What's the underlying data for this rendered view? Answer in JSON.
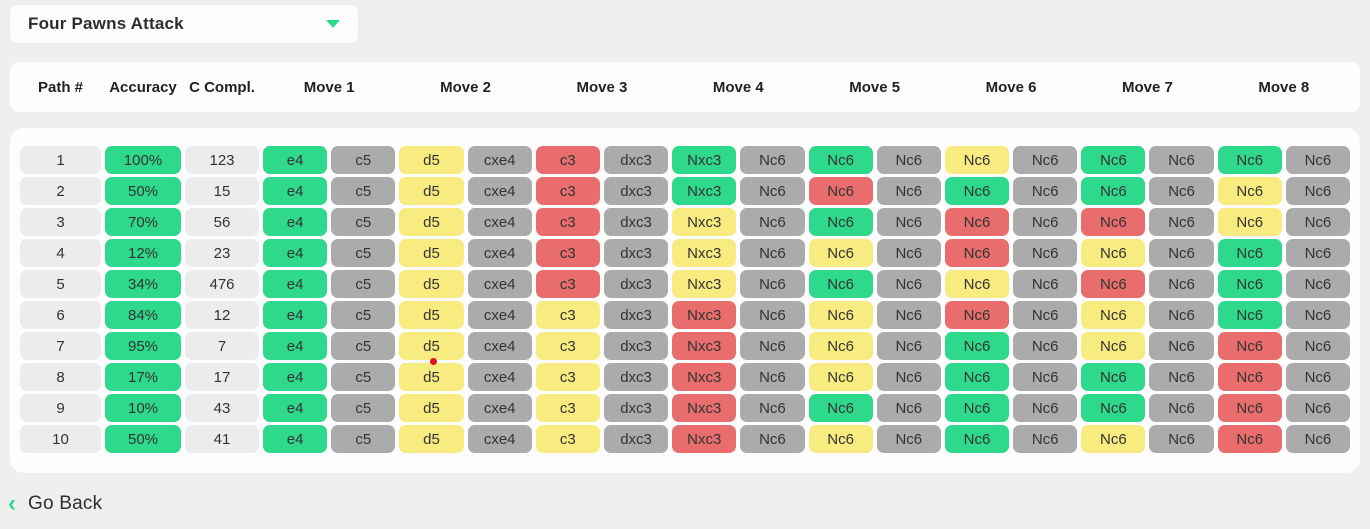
{
  "dropdown": {
    "label": "Four Pawns Attack"
  },
  "colors": {
    "green": "#2ed98b",
    "gray": "#ababab",
    "yellow": "#f8eb7f",
    "red": "#ea6d6d",
    "accent": "#2ed98b"
  },
  "table": {
    "headers": [
      "Path #",
      "Accuracy",
      "C Compl.",
      "Move 1",
      "Move 2",
      "Move 3",
      "Move 4",
      "Move 5",
      "Move 6",
      "Move 7",
      "Move 8"
    ],
    "rows": [
      {
        "path": "1",
        "accuracy": "100%",
        "completions": "123",
        "moves": [
          [
            "e4",
            "g"
          ],
          [
            "c5",
            "x"
          ],
          [
            "d5",
            "y"
          ],
          [
            "cxe4",
            "x"
          ],
          [
            "c3",
            "r"
          ],
          [
            "dxc3",
            "x"
          ],
          [
            "Nxc3",
            "g"
          ],
          [
            "Nc6",
            "x"
          ],
          [
            "Nc6",
            "g"
          ],
          [
            "Nc6",
            "x"
          ],
          [
            "Nc6",
            "y"
          ],
          [
            "Nc6",
            "x"
          ],
          [
            "Nc6",
            "g"
          ],
          [
            "Nc6",
            "x"
          ],
          [
            "Nc6",
            "g"
          ],
          [
            "Nc6",
            "x"
          ]
        ]
      },
      {
        "path": "2",
        "accuracy": "50%",
        "completions": "15",
        "moves": [
          [
            "e4",
            "g"
          ],
          [
            "c5",
            "x"
          ],
          [
            "d5",
            "y"
          ],
          [
            "cxe4",
            "x"
          ],
          [
            "c3",
            "r"
          ],
          [
            "dxc3",
            "x"
          ],
          [
            "Nxc3",
            "g"
          ],
          [
            "Nc6",
            "x"
          ],
          [
            "Nc6",
            "r"
          ],
          [
            "Nc6",
            "x"
          ],
          [
            "Nc6",
            "g"
          ],
          [
            "Nc6",
            "x"
          ],
          [
            "Nc6",
            "g"
          ],
          [
            "Nc6",
            "x"
          ],
          [
            "Nc6",
            "y"
          ],
          [
            "Nc6",
            "x"
          ]
        ]
      },
      {
        "path": "3",
        "accuracy": "70%",
        "completions": "56",
        "moves": [
          [
            "e4",
            "g"
          ],
          [
            "c5",
            "x"
          ],
          [
            "d5",
            "y"
          ],
          [
            "cxe4",
            "x"
          ],
          [
            "c3",
            "r"
          ],
          [
            "dxc3",
            "x"
          ],
          [
            "Nxc3",
            "y"
          ],
          [
            "Nc6",
            "x"
          ],
          [
            "Nc6",
            "g"
          ],
          [
            "Nc6",
            "x"
          ],
          [
            "Nc6",
            "r"
          ],
          [
            "Nc6",
            "x"
          ],
          [
            "Nc6",
            "r"
          ],
          [
            "Nc6",
            "x"
          ],
          [
            "Nc6",
            "y"
          ],
          [
            "Nc6",
            "x"
          ]
        ]
      },
      {
        "path": "4",
        "accuracy": "12%",
        "completions": "23",
        "moves": [
          [
            "e4",
            "g"
          ],
          [
            "c5",
            "x"
          ],
          [
            "d5",
            "y"
          ],
          [
            "cxe4",
            "x"
          ],
          [
            "c3",
            "r"
          ],
          [
            "dxc3",
            "x"
          ],
          [
            "Nxc3",
            "y"
          ],
          [
            "Nc6",
            "x"
          ],
          [
            "Nc6",
            "y"
          ],
          [
            "Nc6",
            "x"
          ],
          [
            "Nc6",
            "r"
          ],
          [
            "Nc6",
            "x"
          ],
          [
            "Nc6",
            "y"
          ],
          [
            "Nc6",
            "x"
          ],
          [
            "Nc6",
            "g"
          ],
          [
            "Nc6",
            "x"
          ]
        ]
      },
      {
        "path": "5",
        "accuracy": "34%",
        "completions": "476",
        "moves": [
          [
            "e4",
            "g"
          ],
          [
            "c5",
            "x"
          ],
          [
            "d5",
            "y"
          ],
          [
            "cxe4",
            "x"
          ],
          [
            "c3",
            "r"
          ],
          [
            "dxc3",
            "x"
          ],
          [
            "Nxc3",
            "y"
          ],
          [
            "Nc6",
            "x"
          ],
          [
            "Nc6",
            "g"
          ],
          [
            "Nc6",
            "x"
          ],
          [
            "Nc6",
            "y"
          ],
          [
            "Nc6",
            "x"
          ],
          [
            "Nc6",
            "r"
          ],
          [
            "Nc6",
            "x"
          ],
          [
            "Nc6",
            "g"
          ],
          [
            "Nc6",
            "x"
          ]
        ]
      },
      {
        "path": "6",
        "accuracy": "84%",
        "completions": "12",
        "moves": [
          [
            "e4",
            "g"
          ],
          [
            "c5",
            "x"
          ],
          [
            "d5",
            "y"
          ],
          [
            "cxe4",
            "x"
          ],
          [
            "c3",
            "y"
          ],
          [
            "dxc3",
            "x"
          ],
          [
            "Nxc3",
            "r"
          ],
          [
            "Nc6",
            "x"
          ],
          [
            "Nc6",
            "y"
          ],
          [
            "Nc6",
            "x"
          ],
          [
            "Nc6",
            "r"
          ],
          [
            "Nc6",
            "x"
          ],
          [
            "Nc6",
            "y"
          ],
          [
            "Nc6",
            "x"
          ],
          [
            "Nc6",
            "g"
          ],
          [
            "Nc6",
            "x"
          ]
        ]
      },
      {
        "path": "7",
        "accuracy": "95%",
        "completions": "7",
        "moves": [
          [
            "e4",
            "g"
          ],
          [
            "c5",
            "x"
          ],
          [
            "d5",
            "y"
          ],
          [
            "cxe4",
            "x"
          ],
          [
            "c3",
            "y"
          ],
          [
            "dxc3",
            "x"
          ],
          [
            "Nxc3",
            "r"
          ],
          [
            "Nc6",
            "x"
          ],
          [
            "Nc6",
            "y"
          ],
          [
            "Nc6",
            "x"
          ],
          [
            "Nc6",
            "g"
          ],
          [
            "Nc6",
            "x"
          ],
          [
            "Nc6",
            "y"
          ],
          [
            "Nc6",
            "x"
          ],
          [
            "Nc6",
            "r"
          ],
          [
            "Nc6",
            "x"
          ]
        ]
      },
      {
        "path": "8",
        "accuracy": "17%",
        "completions": "17",
        "moves": [
          [
            "e4",
            "g"
          ],
          [
            "c5",
            "x"
          ],
          [
            "d5",
            "y"
          ],
          [
            "cxe4",
            "x"
          ],
          [
            "c3",
            "y"
          ],
          [
            "dxc3",
            "x"
          ],
          [
            "Nxc3",
            "r"
          ],
          [
            "Nc6",
            "x"
          ],
          [
            "Nc6",
            "y"
          ],
          [
            "Nc6",
            "x"
          ],
          [
            "Nc6",
            "g"
          ],
          [
            "Nc6",
            "x"
          ],
          [
            "Nc6",
            "g"
          ],
          [
            "Nc6",
            "x"
          ],
          [
            "Nc6",
            "r"
          ],
          [
            "Nc6",
            "x"
          ]
        ]
      },
      {
        "path": "9",
        "accuracy": "10%",
        "completions": "43",
        "moves": [
          [
            "e4",
            "g"
          ],
          [
            "c5",
            "x"
          ],
          [
            "d5",
            "y"
          ],
          [
            "cxe4",
            "x"
          ],
          [
            "c3",
            "y"
          ],
          [
            "dxc3",
            "x"
          ],
          [
            "Nxc3",
            "r"
          ],
          [
            "Nc6",
            "x"
          ],
          [
            "Nc6",
            "g"
          ],
          [
            "Nc6",
            "x"
          ],
          [
            "Nc6",
            "g"
          ],
          [
            "Nc6",
            "x"
          ],
          [
            "Nc6",
            "g"
          ],
          [
            "Nc6",
            "x"
          ],
          [
            "Nc6",
            "r"
          ],
          [
            "Nc6",
            "x"
          ]
        ]
      },
      {
        "path": "10",
        "accuracy": "50%",
        "completions": "41",
        "moves": [
          [
            "e4",
            "g"
          ],
          [
            "c5",
            "x"
          ],
          [
            "d5",
            "y"
          ],
          [
            "cxe4",
            "x"
          ],
          [
            "c3",
            "y"
          ],
          [
            "dxc3",
            "x"
          ],
          [
            "Nxc3",
            "r"
          ],
          [
            "Nc6",
            "x"
          ],
          [
            "Nc6",
            "y"
          ],
          [
            "Nc6",
            "x"
          ],
          [
            "Nc6",
            "g"
          ],
          [
            "Nc6",
            "x"
          ],
          [
            "Nc6",
            "y"
          ],
          [
            "Nc6",
            "x"
          ],
          [
            "Nc6",
            "r"
          ],
          [
            "Nc6",
            "x"
          ]
        ]
      }
    ]
  },
  "footer": {
    "go_back": "Go Back",
    "back_chevron": "‹"
  }
}
